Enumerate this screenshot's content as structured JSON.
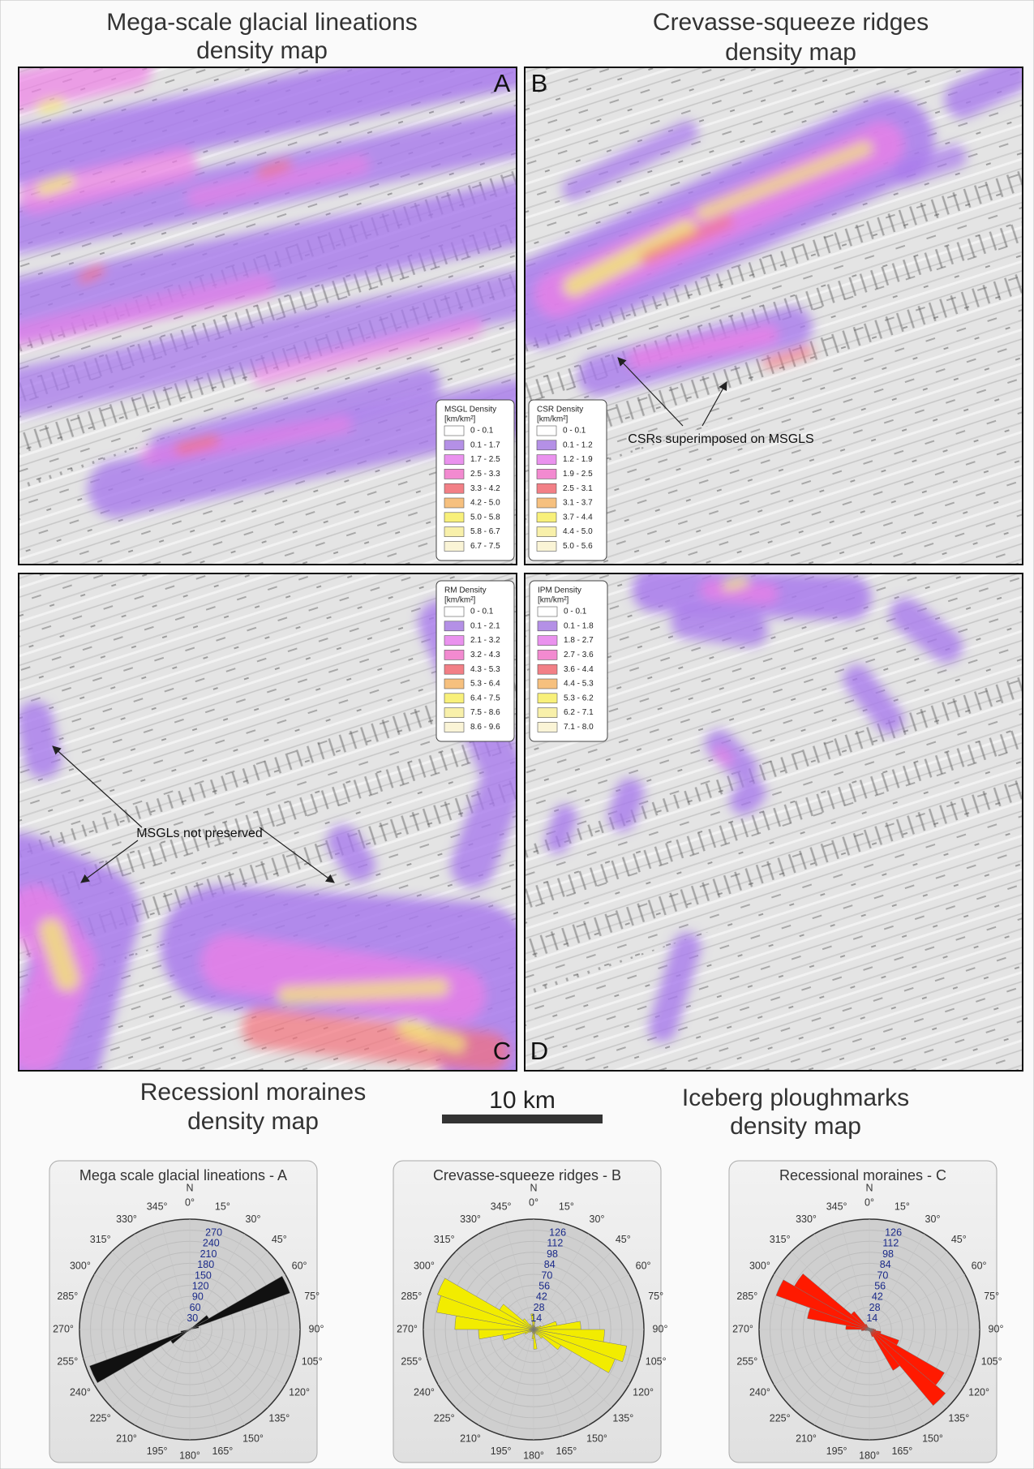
{
  "panels": [
    {
      "title_lines": [
        "Mega-scale glacial lineations",
        "density map"
      ],
      "letter": "A",
      "legend": {
        "title": "MSGL Density",
        "unit": "[km/km²]",
        "entries": [
          {
            "label": "0 - 0.1",
            "color": "#ffffff"
          },
          {
            "label": "0.1 - 1.7",
            "color": "#b490e6"
          },
          {
            "label": "1.7 - 2.5",
            "color": "#ea92ee"
          },
          {
            "label": "2.5 - 3.3",
            "color": "#f28ad0"
          },
          {
            "label": "3.3 - 4.2",
            "color": "#f27f86"
          },
          {
            "label": "4.2 - 5.0",
            "color": "#f6c07e"
          },
          {
            "label": "5.0 - 5.8",
            "color": "#f8f07a"
          },
          {
            "label": "5.8 - 6.7",
            "color": "#f8f0aa"
          },
          {
            "label": "6.7 - 7.5",
            "color": "#faf4d6"
          }
        ]
      }
    },
    {
      "title_lines": [
        "Crevasse-squeeze ridges",
        "density map"
      ],
      "letter": "B",
      "legend": {
        "title": "CSR Density",
        "unit": "[km/km²]",
        "entries": [
          {
            "label": "0 - 0.1",
            "color": "#ffffff"
          },
          {
            "label": "0.1 - 1.2",
            "color": "#b490e6"
          },
          {
            "label": "1.2 - 1.9",
            "color": "#ea92ee"
          },
          {
            "label": "1.9 - 2.5",
            "color": "#f28ad0"
          },
          {
            "label": "2.5 - 3.1",
            "color": "#f27f86"
          },
          {
            "label": "3.1 - 3.7",
            "color": "#f6c07e"
          },
          {
            "label": "3.7 - 4.4",
            "color": "#f8f07a"
          },
          {
            "label": "4.4 - 5.0",
            "color": "#f8f0aa"
          },
          {
            "label": "5.0 - 5.6",
            "color": "#faf4d6"
          }
        ]
      }
    },
    {
      "title_lines": [
        "Recessionl moraines",
        "density map"
      ],
      "letter": "C",
      "legend": {
        "title": "RM Density",
        "unit": "[km/km²]",
        "entries": [
          {
            "label": "0 - 0.1",
            "color": "#ffffff"
          },
          {
            "label": "0.1 - 2.1",
            "color": "#b490e6"
          },
          {
            "label": "2.1 - 3.2",
            "color": "#ea92ee"
          },
          {
            "label": "3.2 - 4.3",
            "color": "#f28ad0"
          },
          {
            "label": "4.3 - 5.3",
            "color": "#f27f86"
          },
          {
            "label": "5.3 - 6.4",
            "color": "#f6c07e"
          },
          {
            "label": "6.4 - 7.5",
            "color": "#f8f07a"
          },
          {
            "label": "7.5 - 8.6",
            "color": "#f8f0aa"
          },
          {
            "label": "8.6 - 9.6",
            "color": "#faf4d6"
          }
        ]
      }
    },
    {
      "title_lines": [
        "Iceberg ploughmarks",
        "density map"
      ],
      "letter": "D",
      "legend": {
        "title": "IPM Density",
        "unit": "[km/km²]",
        "entries": [
          {
            "label": "0 - 0.1",
            "color": "#ffffff"
          },
          {
            "label": "0.1 - 1.8",
            "color": "#b490e6"
          },
          {
            "label": "1.8 - 2.7",
            "color": "#ea92ee"
          },
          {
            "label": "2.7 - 3.6",
            "color": "#f28ad0"
          },
          {
            "label": "3.6 - 4.4",
            "color": "#f27f86"
          },
          {
            "label": "4.4 - 5.3",
            "color": "#f6c07e"
          },
          {
            "label": "5.3 - 6.2",
            "color": "#f8f07a"
          },
          {
            "label": "6.2 - 7.1",
            "color": "#f8f0aa"
          },
          {
            "label": "7.1 - 8.0",
            "color": "#faf4d6"
          }
        ]
      }
    }
  ],
  "annotations": [
    "CSRs superimposed on MSGLS",
    "MSGLs not preserved"
  ],
  "scale_bar": "10 km",
  "roses": [
    {
      "title": "Mega scale glacial lineations - A",
      "north": "N",
      "color": "#111111",
      "angle_labels": [
        "0°",
        "15°",
        "30°",
        "45°",
        "60°",
        "75°",
        "90°",
        "105°",
        "120°",
        "135°",
        "150°",
        "165°",
        "180°",
        "195°",
        "210°",
        "225°",
        "240°",
        "255°",
        "270°",
        "285°",
        "300°",
        "315°",
        "330°",
        "345°"
      ],
      "rlim": [
        0,
        300
      ],
      "radial_ticks": [
        30,
        60,
        90,
        120,
        150,
        180,
        210,
        240,
        270
      ],
      "bins": [
        5,
        15,
        25,
        35,
        45,
        55,
        65,
        75,
        85,
        95,
        105,
        115,
        125,
        135,
        145,
        155,
        165,
        175,
        185,
        195,
        205,
        215,
        225,
        235,
        245,
        255,
        265,
        275,
        285,
        295,
        305,
        315,
        325,
        335,
        345,
        355
      ],
      "values": [
        2,
        2,
        3,
        3,
        8,
        60,
        290,
        25,
        4,
        2,
        2,
        2,
        2,
        2,
        2,
        2,
        2,
        2,
        2,
        2,
        3,
        3,
        8,
        60,
        290,
        25,
        4,
        2,
        2,
        2,
        2,
        2,
        2,
        2,
        2,
        2
      ]
    },
    {
      "title": "Crevasse-squeeze ridges - B",
      "north": "N",
      "color": "#f2ec00",
      "angle_labels": [
        "0°",
        "15°",
        "30°",
        "45°",
        "60°",
        "75°",
        "90°",
        "105°",
        "120°",
        "135°",
        "150°",
        "165°",
        "180°",
        "195°",
        "210°",
        "225°",
        "240°",
        "255°",
        "270°",
        "285°",
        "300°",
        "315°",
        "330°",
        "345°"
      ],
      "rlim": [
        0,
        140
      ],
      "radial_ticks": [
        14,
        28,
        42,
        56,
        70,
        84,
        98,
        112,
        126
      ],
      "bins": [
        5,
        15,
        25,
        35,
        45,
        55,
        65,
        75,
        85,
        95,
        105,
        115,
        125,
        135,
        145,
        155,
        165,
        175,
        185,
        195,
        205,
        215,
        225,
        235,
        245,
        255,
        265,
        275,
        285,
        295,
        305,
        315,
        325,
        335,
        345,
        355
      ],
      "values": [
        10,
        5,
        4,
        3,
        4,
        6,
        10,
        30,
        60,
        90,
        120,
        110,
        40,
        15,
        8,
        5,
        6,
        25,
        12,
        5,
        4,
        3,
        4,
        6,
        12,
        40,
        70,
        100,
        125,
        130,
        50,
        18,
        8,
        5,
        6,
        20
      ]
    },
    {
      "title": "Recessional moraines - C",
      "north": "N",
      "color": "#ff1a00",
      "angle_labels": [
        "0°",
        "15°",
        "30°",
        "45°",
        "60°",
        "75°",
        "90°",
        "105°",
        "120°",
        "135°",
        "150°",
        "165°",
        "180°",
        "195°",
        "210°",
        "225°",
        "240°",
        "255°",
        "270°",
        "285°",
        "300°",
        "315°",
        "330°",
        "345°"
      ],
      "rlim": [
        0,
        140
      ],
      "radial_ticks": [
        14,
        28,
        42,
        56,
        70,
        84,
        98,
        112,
        126
      ],
      "bins": [
        5,
        15,
        25,
        35,
        45,
        55,
        65,
        75,
        85,
        95,
        105,
        115,
        125,
        135,
        145,
        155,
        165,
        175,
        185,
        195,
        205,
        215,
        225,
        235,
        245,
        255,
        265,
        275,
        285,
        295,
        305,
        315,
        325,
        335,
        345,
        355
      ],
      "values": [
        2,
        2,
        2,
        2,
        2,
        2,
        3,
        4,
        6,
        8,
        15,
        40,
        110,
        126,
        60,
        10,
        3,
        2,
        2,
        2,
        2,
        2,
        2,
        2,
        3,
        5,
        10,
        30,
        80,
        126,
        110,
        30,
        8,
        3,
        2,
        2
      ]
    }
  ]
}
